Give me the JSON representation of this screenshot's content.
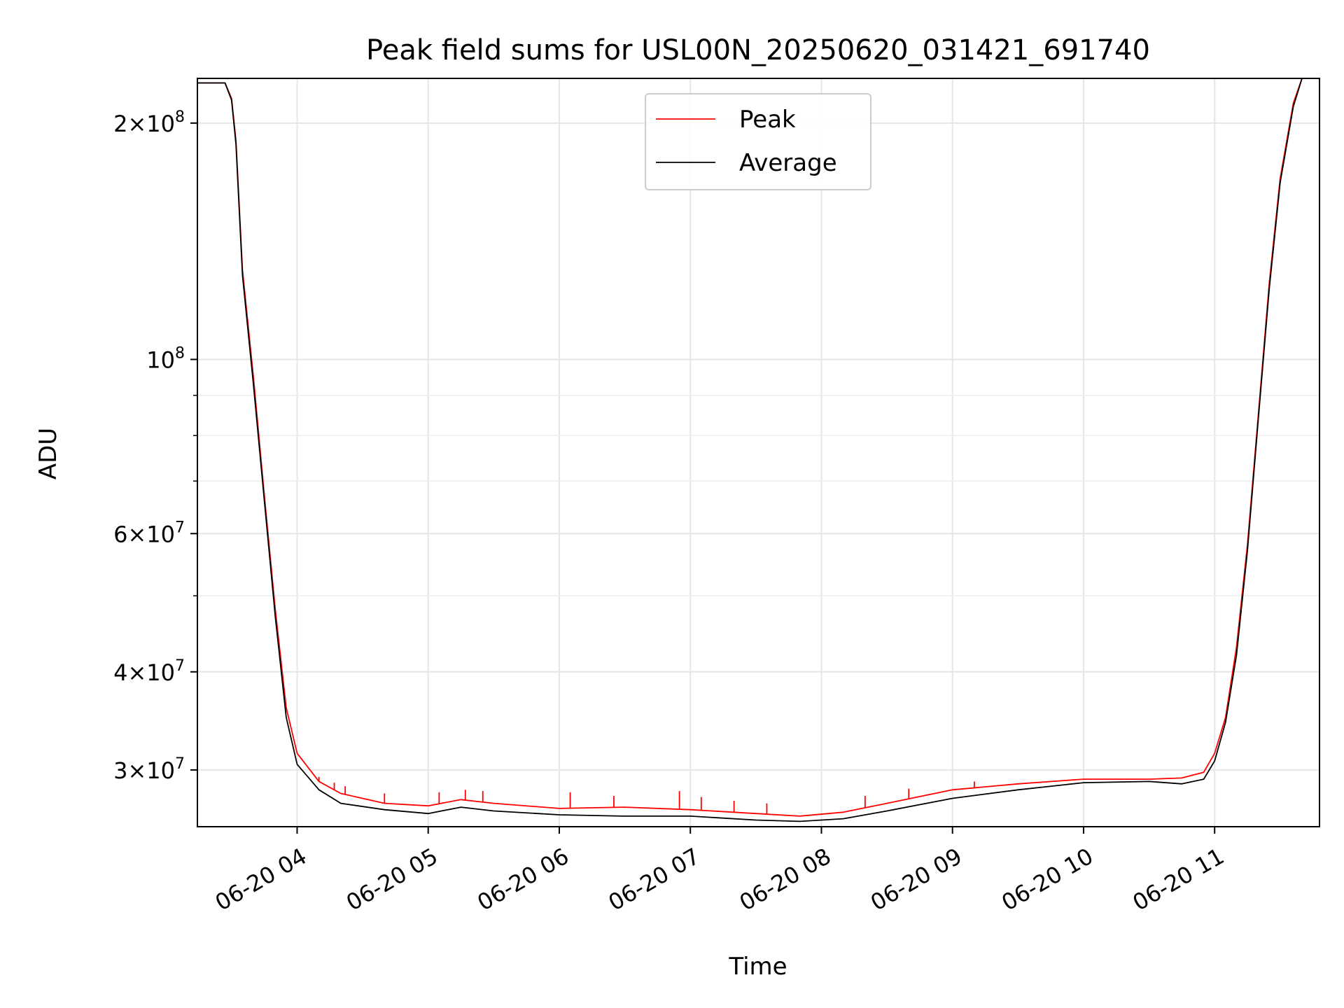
{
  "chart_data": {
    "type": "line",
    "title": "Peak field sums for USL00N_20250620_031421_691740",
    "xlabel": "Time",
    "ylabel": "ADU",
    "x_axis_type": "datetime",
    "y_scale": "log",
    "ylim": [
      25400000,
      228000000
    ],
    "xlim": [
      "2025-06-20T03:14:21",
      "2025-06-20T11:48:00"
    ],
    "grid": true,
    "legend_position": "top-center",
    "x_ticks": [
      {
        "t": "2025-06-20T04:00",
        "label": "06-20 04"
      },
      {
        "t": "2025-06-20T05:00",
        "label": "06-20 05"
      },
      {
        "t": "2025-06-20T06:00",
        "label": "06-20 06"
      },
      {
        "t": "2025-06-20T07:00",
        "label": "06-20 07"
      },
      {
        "t": "2025-06-20T08:00",
        "label": "06-20 08"
      },
      {
        "t": "2025-06-20T09:00",
        "label": "06-20 09"
      },
      {
        "t": "2025-06-20T10:00",
        "label": "06-20 10"
      },
      {
        "t": "2025-06-20T11:00",
        "label": "06-20 11"
      }
    ],
    "y_major_ticks": [
      {
        "value": 200000000,
        "mantissa": "2",
        "exponent": "8"
      },
      {
        "value": 100000000,
        "mantissa": "",
        "exponent": "8"
      },
      {
        "value": 60000000,
        "mantissa": "6",
        "exponent": "7"
      },
      {
        "value": 40000000,
        "mantissa": "4",
        "exponent": "7"
      },
      {
        "value": 30000000,
        "mantissa": "3",
        "exponent": "7"
      }
    ],
    "y_minor_ticks": [
      90000000,
      80000000,
      70000000,
      50000000
    ],
    "series": [
      {
        "name": "Peak",
        "color": "#ff0000",
        "x": [
          "2025-06-20T03:14:21",
          "2025-06-20T03:27",
          "2025-06-20T03:30",
          "2025-06-20T03:32",
          "2025-06-20T03:35",
          "2025-06-20T03:40",
          "2025-06-20T03:45",
          "2025-06-20T03:50",
          "2025-06-20T03:55",
          "2025-06-20T04:00",
          "2025-06-20T04:10",
          "2025-06-20T04:20",
          "2025-06-20T04:40",
          "2025-06-20T05:00",
          "2025-06-20T05:15",
          "2025-06-20T05:30",
          "2025-06-20T06:00",
          "2025-06-20T06:30",
          "2025-06-20T07:00",
          "2025-06-20T07:30",
          "2025-06-20T07:50",
          "2025-06-20T08:10",
          "2025-06-20T08:30",
          "2025-06-20T09:00",
          "2025-06-20T09:30",
          "2025-06-20T10:00",
          "2025-06-20T10:30",
          "2025-06-20T10:45",
          "2025-06-20T10:55",
          "2025-06-20T11:00",
          "2025-06-20T11:05",
          "2025-06-20T11:10",
          "2025-06-20T11:15",
          "2025-06-20T11:20",
          "2025-06-20T11:25",
          "2025-06-20T11:30",
          "2025-06-20T11:36",
          "2025-06-20T11:40"
        ],
        "values": [
          225000000,
          225000000,
          215000000,
          190000000,
          130000000,
          95000000,
          67000000,
          48000000,
          36000000,
          31500000,
          29000000,
          28000000,
          27200000,
          27000000,
          27500000,
          27200000,
          26800000,
          26900000,
          26700000,
          26400000,
          26200000,
          26500000,
          27200000,
          28300000,
          28800000,
          29200000,
          29200000,
          29300000,
          29800000,
          31500000,
          35000000,
          43000000,
          58000000,
          85000000,
          125000000,
          170000000,
          212000000,
          228000000
        ],
        "spikes": [
          {
            "t": "2025-06-20T04:10",
            "v": 29400000
          },
          {
            "t": "2025-06-20T04:17",
            "v": 28900000
          },
          {
            "t": "2025-06-20T04:22",
            "v": 28600000
          },
          {
            "t": "2025-06-20T04:40",
            "v": 28000000
          },
          {
            "t": "2025-06-20T05:05",
            "v": 28100000
          },
          {
            "t": "2025-06-20T05:17",
            "v": 28300000
          },
          {
            "t": "2025-06-20T05:25",
            "v": 28200000
          },
          {
            "t": "2025-06-20T06:05",
            "v": 28100000
          },
          {
            "t": "2025-06-20T06:25",
            "v": 27800000
          },
          {
            "t": "2025-06-20T06:55",
            "v": 28200000
          },
          {
            "t": "2025-06-20T07:05",
            "v": 27700000
          },
          {
            "t": "2025-06-20T07:20",
            "v": 27400000
          },
          {
            "t": "2025-06-20T07:35",
            "v": 27200000
          },
          {
            "t": "2025-06-20T08:20",
            "v": 27800000
          },
          {
            "t": "2025-06-20T08:40",
            "v": 28400000
          },
          {
            "t": "2025-06-20T09:10",
            "v": 29000000
          }
        ]
      },
      {
        "name": "Average",
        "color": "#000000",
        "x": [
          "2025-06-20T03:14:21",
          "2025-06-20T03:27",
          "2025-06-20T03:30",
          "2025-06-20T03:32",
          "2025-06-20T03:35",
          "2025-06-20T03:40",
          "2025-06-20T03:45",
          "2025-06-20T03:50",
          "2025-06-20T03:55",
          "2025-06-20T04:00",
          "2025-06-20T04:10",
          "2025-06-20T04:20",
          "2025-06-20T04:40",
          "2025-06-20T05:00",
          "2025-06-20T05:15",
          "2025-06-20T05:30",
          "2025-06-20T06:00",
          "2025-06-20T06:30",
          "2025-06-20T07:00",
          "2025-06-20T07:30",
          "2025-06-20T07:50",
          "2025-06-20T08:10",
          "2025-06-20T08:30",
          "2025-06-20T09:00",
          "2025-06-20T09:30",
          "2025-06-20T10:00",
          "2025-06-20T10:30",
          "2025-06-20T10:45",
          "2025-06-20T10:55",
          "2025-06-20T11:00",
          "2025-06-20T11:05",
          "2025-06-20T11:10",
          "2025-06-20T11:15",
          "2025-06-20T11:20",
          "2025-06-20T11:25",
          "2025-06-20T11:30",
          "2025-06-20T11:36",
          "2025-06-20T11:40"
        ],
        "values": [
          225000000,
          225000000,
          214000000,
          188000000,
          128000000,
          93000000,
          66000000,
          47000000,
          35000000,
          30500000,
          28300000,
          27200000,
          26700000,
          26400000,
          26900000,
          26600000,
          26300000,
          26200000,
          26200000,
          25900000,
          25800000,
          26000000,
          26600000,
          27600000,
          28300000,
          28900000,
          29000000,
          28800000,
          29200000,
          30800000,
          34500000,
          42000000,
          57000000,
          84000000,
          123000000,
          168000000,
          210000000,
          228000000
        ]
      }
    ]
  }
}
